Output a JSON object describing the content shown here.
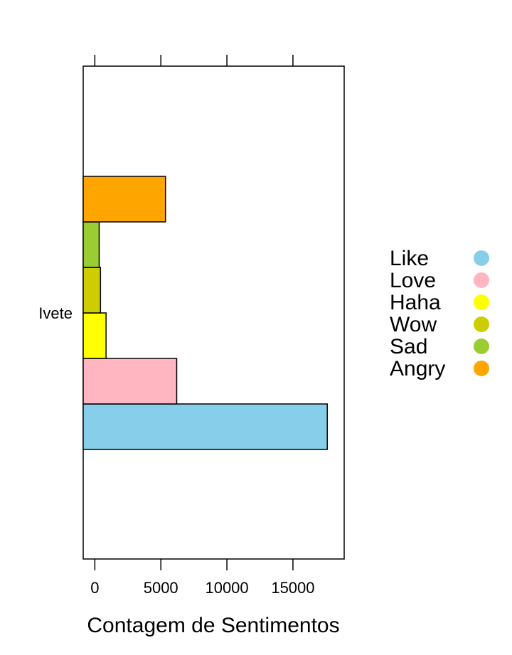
{
  "chart_data": {
    "type": "bar",
    "orientation": "horizontal",
    "categories": [
      "Ivete"
    ],
    "series": [
      {
        "name": "Like",
        "values": [
          17600
        ],
        "color": "#87CEEB"
      },
      {
        "name": "Love",
        "values": [
          6200
        ],
        "color": "#FFB6C1"
      },
      {
        "name": "Haha",
        "values": [
          850
        ],
        "color": "#FFFF00"
      },
      {
        "name": "Wow",
        "values": [
          430
        ],
        "color": "#CDCD00"
      },
      {
        "name": "Sad",
        "values": [
          330
        ],
        "color": "#9ACD32"
      },
      {
        "name": "Angry",
        "values": [
          5350
        ],
        "color": "#FFA500"
      }
    ],
    "xlabel": "Contagem de Sentimentos",
    "ylabel": "",
    "xlim": [
      -880,
      18880
    ],
    "xticks": [
      0,
      5000,
      10000,
      15000
    ],
    "xtick_labels": [
      "0",
      "5000",
      "10000",
      "15000"
    ],
    "grid": false,
    "legend_position": "right"
  }
}
